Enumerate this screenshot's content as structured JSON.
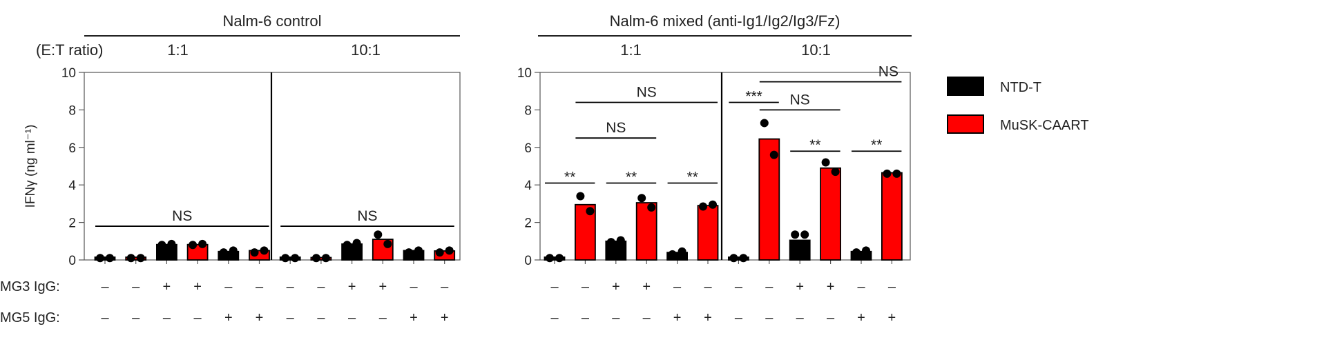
{
  "chart_data": {
    "type": "bar",
    "ylabel": "IFNγ (ng ml⁻¹)",
    "ylim": [
      0,
      10
    ],
    "yticks": [
      "0",
      "2",
      "4",
      "6",
      "8",
      "10"
    ],
    "ratio_label": "(E:T ratio)",
    "legend": [
      {
        "name": "NTD-T",
        "color": "#000000"
      },
      {
        "name": "MuSK-CAART",
        "color": "#ff0000"
      }
    ],
    "conditions": [
      {
        "label": "MG3 IgG:",
        "values": [
          "–",
          "–",
          "+",
          "+",
          "–",
          "–",
          "–",
          "–",
          "+",
          "+",
          "–",
          "–"
        ]
      },
      {
        "label": "MG5 IgG:",
        "values": [
          "–",
          "–",
          "–",
          "–",
          "+",
          "+",
          "–",
          "–",
          "–",
          "–",
          "+",
          "+"
        ]
      }
    ],
    "bar_groups": [
      "NTD-T",
      "MuSK-CAART",
      "NTD-T",
      "MuSK-CAART",
      "NTD-T",
      "MuSK-CAART",
      "NTD-T",
      "MuSK-CAART",
      "NTD-T",
      "MuSK-CAART",
      "NTD-T",
      "MuSK-CAART"
    ],
    "panels": [
      {
        "title": "Nalm-6 control",
        "ratios": [
          "1:1",
          "10:1"
        ],
        "values": [
          0.15,
          0.15,
          0.82,
          0.82,
          0.45,
          0.5,
          0.15,
          0.13,
          0.85,
          1.1,
          0.5,
          0.48
        ],
        "points": [
          [
            0.1,
            0.1
          ],
          [
            0.1,
            0.1
          ],
          [
            0.8,
            0.85
          ],
          [
            0.8,
            0.85
          ],
          [
            0.4,
            0.5
          ],
          [
            0.4,
            0.5
          ],
          [
            0.1,
            0.1
          ],
          [
            0.1,
            0.1
          ],
          [
            0.8,
            0.9
          ],
          [
            1.35,
            0.85
          ],
          [
            0.4,
            0.5
          ],
          [
            0.4,
            0.5
          ]
        ],
        "significance": [
          {
            "label": "NS",
            "from": 0,
            "to": 5,
            "y": 1.8
          },
          {
            "label": "NS",
            "from": 6,
            "to": 11,
            "y": 1.8
          }
        ]
      },
      {
        "title": "Nalm-6 mixed (anti-Ig1/Ig2/Ig3/Fz)",
        "ratios": [
          "1:1",
          "10:1"
        ],
        "values": [
          0.15,
          2.95,
          1.0,
          3.05,
          0.4,
          2.9,
          0.15,
          6.45,
          1.05,
          4.9,
          0.45,
          4.65
        ],
        "points": [
          [
            0.1,
            0.1
          ],
          [
            3.4,
            2.6
          ],
          [
            0.95,
            1.05
          ],
          [
            3.3,
            2.8
          ],
          [
            0.3,
            0.45
          ],
          [
            2.85,
            2.95
          ],
          [
            0.1,
            0.1
          ],
          [
            7.3,
            5.6
          ],
          [
            1.35,
            1.35
          ],
          [
            5.2,
            4.7
          ],
          [
            0.4,
            0.5
          ],
          [
            4.6,
            4.6
          ]
        ],
        "significance": [
          {
            "label": "**",
            "from": 0,
            "to": 1,
            "y": 4.1
          },
          {
            "label": "**",
            "from": 2,
            "to": 3,
            "y": 4.1
          },
          {
            "label": "**",
            "from": 4,
            "to": 5,
            "y": 4.1
          },
          {
            "label": "NS",
            "from": 1,
            "to": 3,
            "y": 6.5
          },
          {
            "label": "NS",
            "from": 1,
            "to": 5,
            "y": 8.4
          },
          {
            "label": "***",
            "from": 6,
            "to": 7,
            "y": 8.4
          },
          {
            "label": "NS",
            "from": 7,
            "to": 9,
            "y": 8.0
          },
          {
            "label": "NS",
            "from": 7,
            "to": 11,
            "y": 9.5,
            "label_at": 11
          },
          {
            "label": "**",
            "from": 8,
            "to": 9,
            "y": 5.8
          },
          {
            "label": "**",
            "from": 10,
            "to": 11,
            "y": 5.8
          }
        ]
      }
    ]
  }
}
